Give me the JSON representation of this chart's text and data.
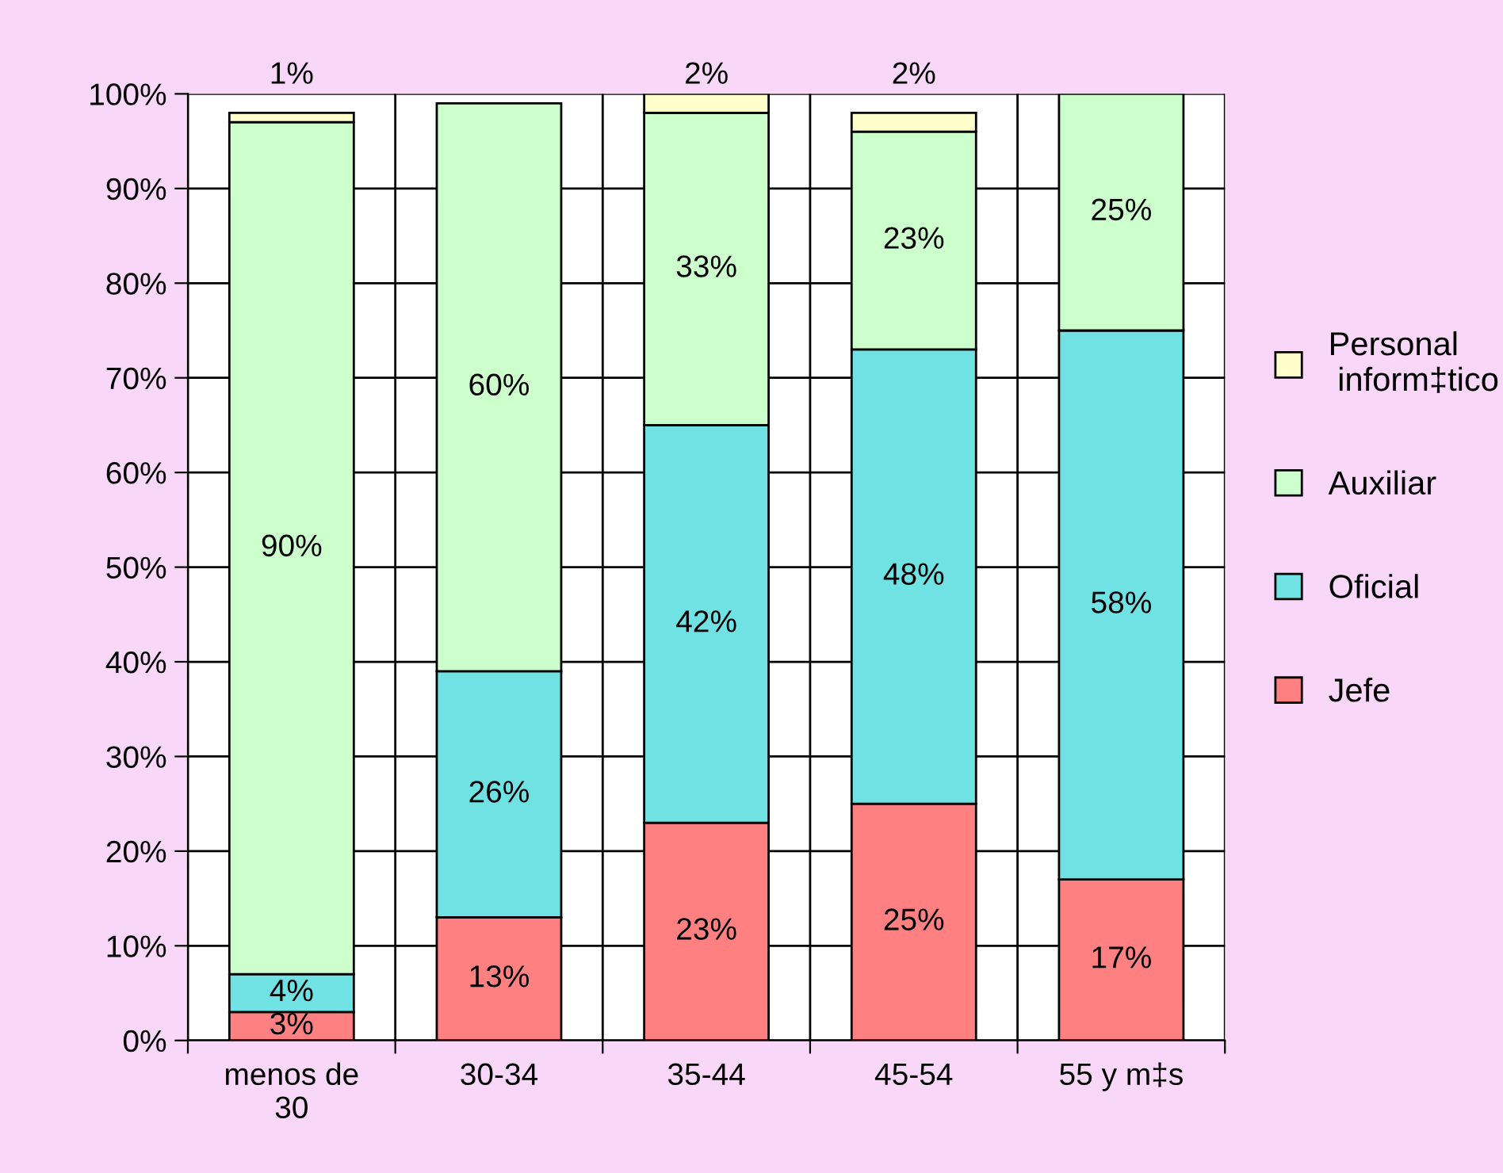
{
  "chart_data": {
    "type": "bar",
    "stacked": true,
    "categories": [
      "menos de 30",
      "30-34",
      "35-44",
      "45-54",
      "55 y m‡s"
    ],
    "series": [
      {
        "name": "Jefe",
        "color": "#ff8080",
        "values": [
          3,
          13,
          23,
          25,
          17
        ],
        "value_labels": [
          "3%",
          "13%",
          "23%",
          "25%",
          "17%"
        ]
      },
      {
        "name": "Oficial",
        "color": "#70e2e4",
        "values": [
          4,
          26,
          42,
          48,
          58
        ],
        "value_labels": [
          "4%",
          "26%",
          "42%",
          "48%",
          "58%"
        ]
      },
      {
        "name": "Auxiliar",
        "color": "#ccffcc",
        "values": [
          90,
          60,
          33,
          23,
          25
        ],
        "value_labels": [
          "90%",
          "60%",
          "33%",
          "23%",
          "25%"
        ]
      },
      {
        "name": "Personal\n inform‡tico",
        "color": "#ffffcc",
        "values": [
          1,
          null,
          2,
          2,
          null
        ],
        "value_labels": [
          "1%",
          null,
          "2%",
          "2%",
          null
        ]
      }
    ],
    "ylim": [
      0,
      100
    ],
    "yticks": [
      {
        "value": 0,
        "label": "0%"
      },
      {
        "value": 10,
        "label": "10%"
      },
      {
        "value": 20,
        "label": "20%"
      },
      {
        "value": 30,
        "label": "30%"
      },
      {
        "value": 40,
        "label": "40%"
      },
      {
        "value": 50,
        "label": "50%"
      },
      {
        "value": 60,
        "label": "60%"
      },
      {
        "value": 70,
        "label": "70%"
      },
      {
        "value": 80,
        "label": "80%"
      },
      {
        "value": 90,
        "label": "90%"
      },
      {
        "value": 100,
        "label": "100%"
      }
    ],
    "grid": true,
    "legend": "right"
  }
}
